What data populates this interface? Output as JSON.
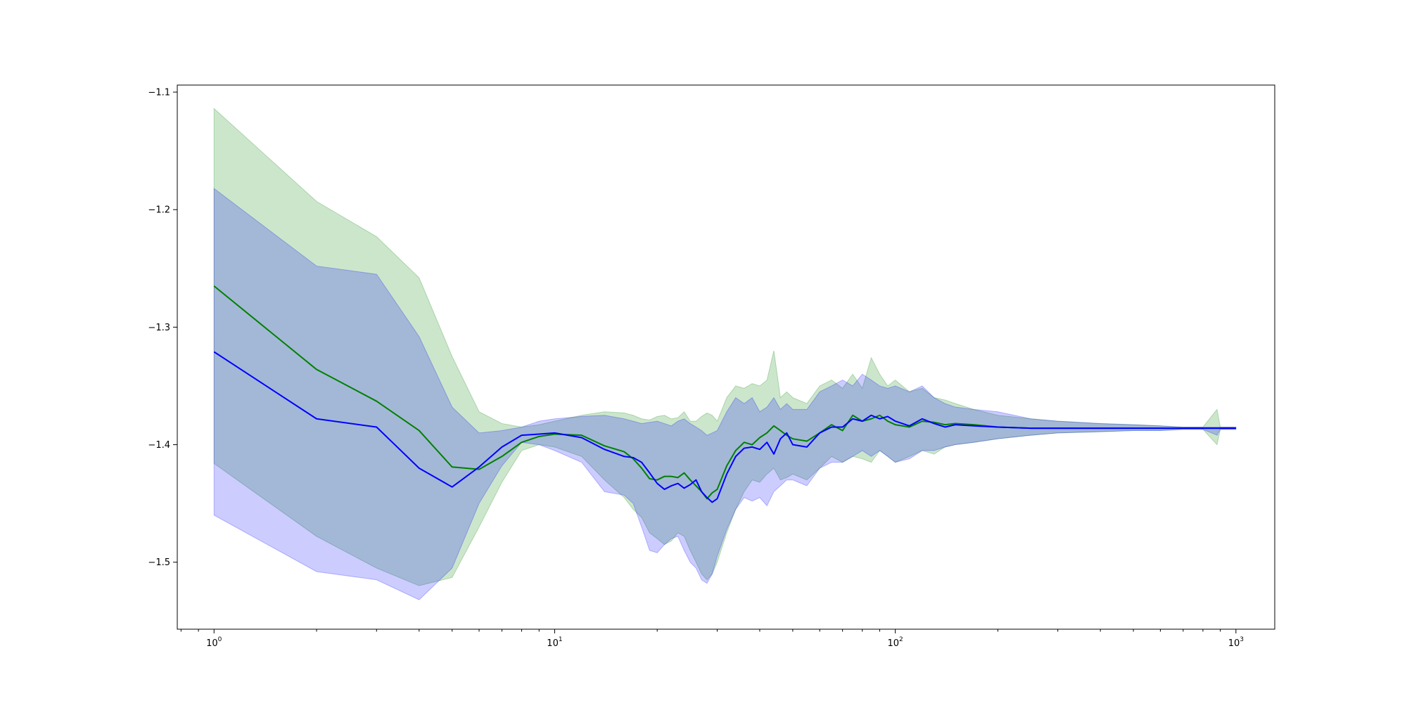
{
  "chart_data": {
    "type": "area",
    "title": "",
    "xlabel": "",
    "ylabel": "",
    "xscale": "log",
    "xlim": [
      0.78,
      1300
    ],
    "ylim": [
      -1.557,
      -1.094
    ],
    "grid": false,
    "legend": "none",
    "x_ticks": [
      {
        "value": 1,
        "base": "10",
        "exp": "0"
      },
      {
        "value": 10,
        "base": "10",
        "exp": "1"
      },
      {
        "value": 100,
        "base": "10",
        "exp": "2"
      },
      {
        "value": 1000,
        "base": "10",
        "exp": "3"
      }
    ],
    "y_ticks": [
      {
        "value": -1.1,
        "label": "−1.1"
      },
      {
        "value": -1.2,
        "label": "−1.2"
      },
      {
        "value": -1.3,
        "label": "−1.3"
      },
      {
        "value": -1.4,
        "label": "−1.4"
      },
      {
        "value": -1.5,
        "label": "−1.5"
      }
    ],
    "series": [
      {
        "color": "#008000",
        "band_color": "#008000",
        "band_opacity": 0.2,
        "x": [
          1,
          2,
          3,
          4,
          5,
          6,
          7,
          8,
          9,
          10,
          12,
          14,
          16,
          17,
          18,
          19,
          20,
          21,
          22,
          23,
          24,
          25,
          26,
          27,
          28,
          29,
          30,
          32,
          34,
          36,
          38,
          40,
          42,
          44,
          46,
          48,
          50,
          55,
          60,
          65,
          70,
          75,
          80,
          85,
          90,
          95,
          100,
          110,
          120,
          130,
          140,
          150,
          170,
          200,
          250,
          300,
          400,
          500,
          600,
          700,
          800,
          880,
          900,
          1000
        ],
        "mean": [
          -1.265,
          -1.336,
          -1.363,
          -1.388,
          -1.419,
          -1.421,
          -1.41,
          -1.398,
          -1.393,
          -1.391,
          -1.392,
          -1.401,
          -1.406,
          -1.412,
          -1.42,
          -1.429,
          -1.43,
          -1.427,
          -1.427,
          -1.428,
          -1.424,
          -1.43,
          -1.435,
          -1.44,
          -1.446,
          -1.441,
          -1.438,
          -1.418,
          -1.405,
          -1.398,
          -1.4,
          -1.394,
          -1.39,
          -1.384,
          -1.388,
          -1.392,
          -1.395,
          -1.397,
          -1.39,
          -1.383,
          -1.388,
          -1.375,
          -1.38,
          -1.378,
          -1.375,
          -1.38,
          -1.383,
          -1.385,
          -1.38,
          -1.381,
          -1.383,
          -1.382,
          -1.383,
          -1.385,
          -1.386,
          -1.386,
          -1.386,
          -1.386,
          -1.386,
          -1.386,
          -1.386,
          -1.386,
          -1.386,
          -1.386
        ],
        "upper": [
          -1.114,
          -1.193,
          -1.223,
          -1.258,
          -1.325,
          -1.372,
          -1.382,
          -1.385,
          -1.383,
          -1.38,
          -1.375,
          -1.372,
          -1.373,
          -1.375,
          -1.378,
          -1.379,
          -1.376,
          -1.375,
          -1.378,
          -1.377,
          -1.372,
          -1.38,
          -1.38,
          -1.376,
          -1.373,
          -1.375,
          -1.38,
          -1.36,
          -1.35,
          -1.352,
          -1.348,
          -1.35,
          -1.345,
          -1.32,
          -1.36,
          -1.355,
          -1.36,
          -1.365,
          -1.35,
          -1.345,
          -1.352,
          -1.34,
          -1.352,
          -1.326,
          -1.34,
          -1.35,
          -1.345,
          -1.355,
          -1.352,
          -1.36,
          -1.362,
          -1.365,
          -1.37,
          -1.375,
          -1.378,
          -1.38,
          -1.382,
          -1.383,
          -1.384,
          -1.385,
          -1.385,
          -1.37,
          -1.385,
          -1.385
        ],
        "lower": [
          -1.416,
          -1.478,
          -1.505,
          -1.52,
          -1.513,
          -1.47,
          -1.432,
          -1.405,
          -1.4,
          -1.402,
          -1.41,
          -1.43,
          -1.445,
          -1.455,
          -1.462,
          -1.475,
          -1.48,
          -1.485,
          -1.482,
          -1.475,
          -1.478,
          -1.49,
          -1.5,
          -1.51,
          -1.515,
          -1.51,
          -1.5,
          -1.475,
          -1.455,
          -1.44,
          -1.43,
          -1.432,
          -1.425,
          -1.42,
          -1.43,
          -1.428,
          -1.425,
          -1.43,
          -1.42,
          -1.41,
          -1.415,
          -1.41,
          -1.412,
          -1.415,
          -1.405,
          -1.41,
          -1.415,
          -1.41,
          -1.405,
          -1.408,
          -1.402,
          -1.4,
          -1.398,
          -1.395,
          -1.392,
          -1.39,
          -1.389,
          -1.388,
          -1.388,
          -1.387,
          -1.387,
          -1.4,
          -1.387,
          -1.387
        ]
      },
      {
        "color": "#0000ff",
        "band_color": "#0000ff",
        "band_opacity": 0.2,
        "x": [
          1,
          2,
          3,
          4,
          5,
          6,
          7,
          8,
          9,
          10,
          12,
          14,
          16,
          17,
          18,
          19,
          20,
          21,
          22,
          23,
          24,
          25,
          26,
          27,
          28,
          29,
          30,
          32,
          34,
          36,
          38,
          40,
          42,
          44,
          46,
          48,
          50,
          55,
          60,
          65,
          70,
          75,
          80,
          85,
          90,
          95,
          100,
          110,
          120,
          130,
          140,
          150,
          170,
          200,
          250,
          300,
          400,
          500,
          600,
          700,
          800,
          880,
          900,
          1000
        ],
        "mean": [
          -1.321,
          -1.378,
          -1.385,
          -1.42,
          -1.436,
          -1.419,
          -1.402,
          -1.392,
          -1.391,
          -1.39,
          -1.394,
          -1.404,
          -1.41,
          -1.411,
          -1.415,
          -1.424,
          -1.433,
          -1.438,
          -1.435,
          -1.433,
          -1.437,
          -1.434,
          -1.43,
          -1.44,
          -1.445,
          -1.449,
          -1.446,
          -1.425,
          -1.41,
          -1.403,
          -1.402,
          -1.404,
          -1.398,
          -1.408,
          -1.395,
          -1.39,
          -1.4,
          -1.402,
          -1.39,
          -1.385,
          -1.385,
          -1.378,
          -1.38,
          -1.375,
          -1.378,
          -1.376,
          -1.38,
          -1.384,
          -1.378,
          -1.382,
          -1.385,
          -1.383,
          -1.384,
          -1.385,
          -1.386,
          -1.386,
          -1.386,
          -1.386,
          -1.386,
          -1.386,
          -1.386,
          -1.386,
          -1.386,
          -1.386
        ],
        "upper": [
          -1.182,
          -1.248,
          -1.255,
          -1.308,
          -1.368,
          -1.39,
          -1.388,
          -1.385,
          -1.38,
          -1.378,
          -1.376,
          -1.375,
          -1.378,
          -1.38,
          -1.382,
          -1.381,
          -1.38,
          -1.382,
          -1.384,
          -1.38,
          -1.378,
          -1.382,
          -1.385,
          -1.388,
          -1.392,
          -1.39,
          -1.388,
          -1.372,
          -1.36,
          -1.365,
          -1.36,
          -1.372,
          -1.368,
          -1.36,
          -1.37,
          -1.365,
          -1.37,
          -1.37,
          -1.355,
          -1.35,
          -1.345,
          -1.35,
          -1.34,
          -1.345,
          -1.35,
          -1.352,
          -1.35,
          -1.355,
          -1.35,
          -1.36,
          -1.365,
          -1.368,
          -1.37,
          -1.372,
          -1.378,
          -1.38,
          -1.382,
          -1.383,
          -1.384,
          -1.385,
          -1.385,
          -1.385,
          -1.385,
          -1.385
        ],
        "lower": [
          -1.46,
          -1.508,
          -1.515,
          -1.532,
          -1.505,
          -1.45,
          -1.418,
          -1.398,
          -1.4,
          -1.405,
          -1.415,
          -1.44,
          -1.443,
          -1.45,
          -1.47,
          -1.49,
          -1.492,
          -1.485,
          -1.48,
          -1.478,
          -1.49,
          -1.5,
          -1.505,
          -1.515,
          -1.518,
          -1.51,
          -1.495,
          -1.472,
          -1.455,
          -1.445,
          -1.448,
          -1.445,
          -1.452,
          -1.44,
          -1.435,
          -1.43,
          -1.43,
          -1.435,
          -1.42,
          -1.415,
          -1.415,
          -1.41,
          -1.405,
          -1.41,
          -1.405,
          -1.41,
          -1.415,
          -1.412,
          -1.405,
          -1.405,
          -1.402,
          -1.4,
          -1.398,
          -1.395,
          -1.392,
          -1.39,
          -1.389,
          -1.388,
          -1.388,
          -1.387,
          -1.387,
          -1.392,
          -1.387,
          -1.387
        ]
      }
    ]
  }
}
